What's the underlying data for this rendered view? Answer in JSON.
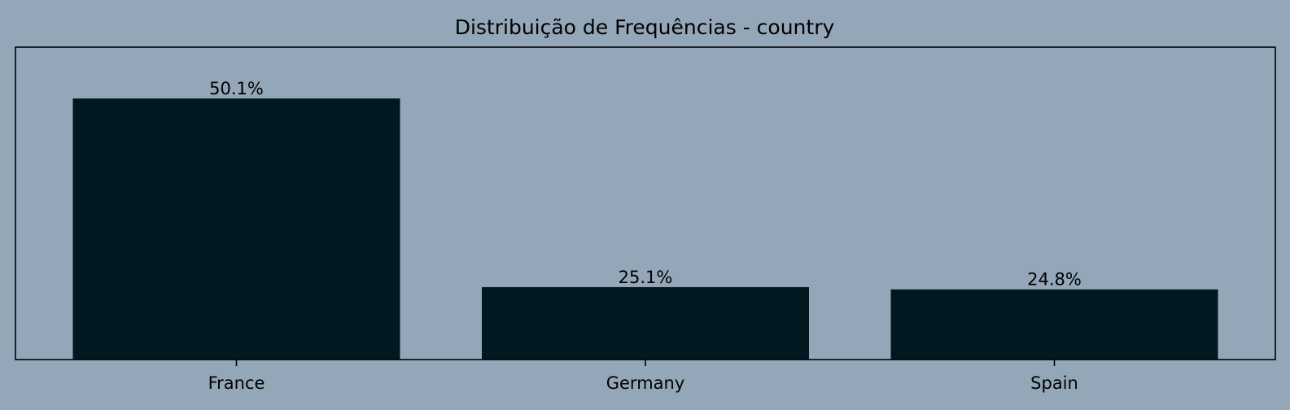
{
  "chart_data": {
    "type": "bar",
    "title": "Distribuição de Frequências - country",
    "xlabel": "",
    "ylabel": "",
    "categories": [
      "France",
      "Germany",
      "Spain"
    ],
    "values": [
      50.1,
      25.1,
      24.8
    ],
    "data_labels": [
      "50.1%",
      "25.1%",
      "24.8%"
    ],
    "ylim": [
      15.5,
      56.9
    ],
    "y_ticks_visible": false,
    "grid": false,
    "legend": "none"
  },
  "colors": {
    "background": "#93a7b8",
    "bar": "#011820",
    "axes": "#000000",
    "text": "#000000"
  }
}
